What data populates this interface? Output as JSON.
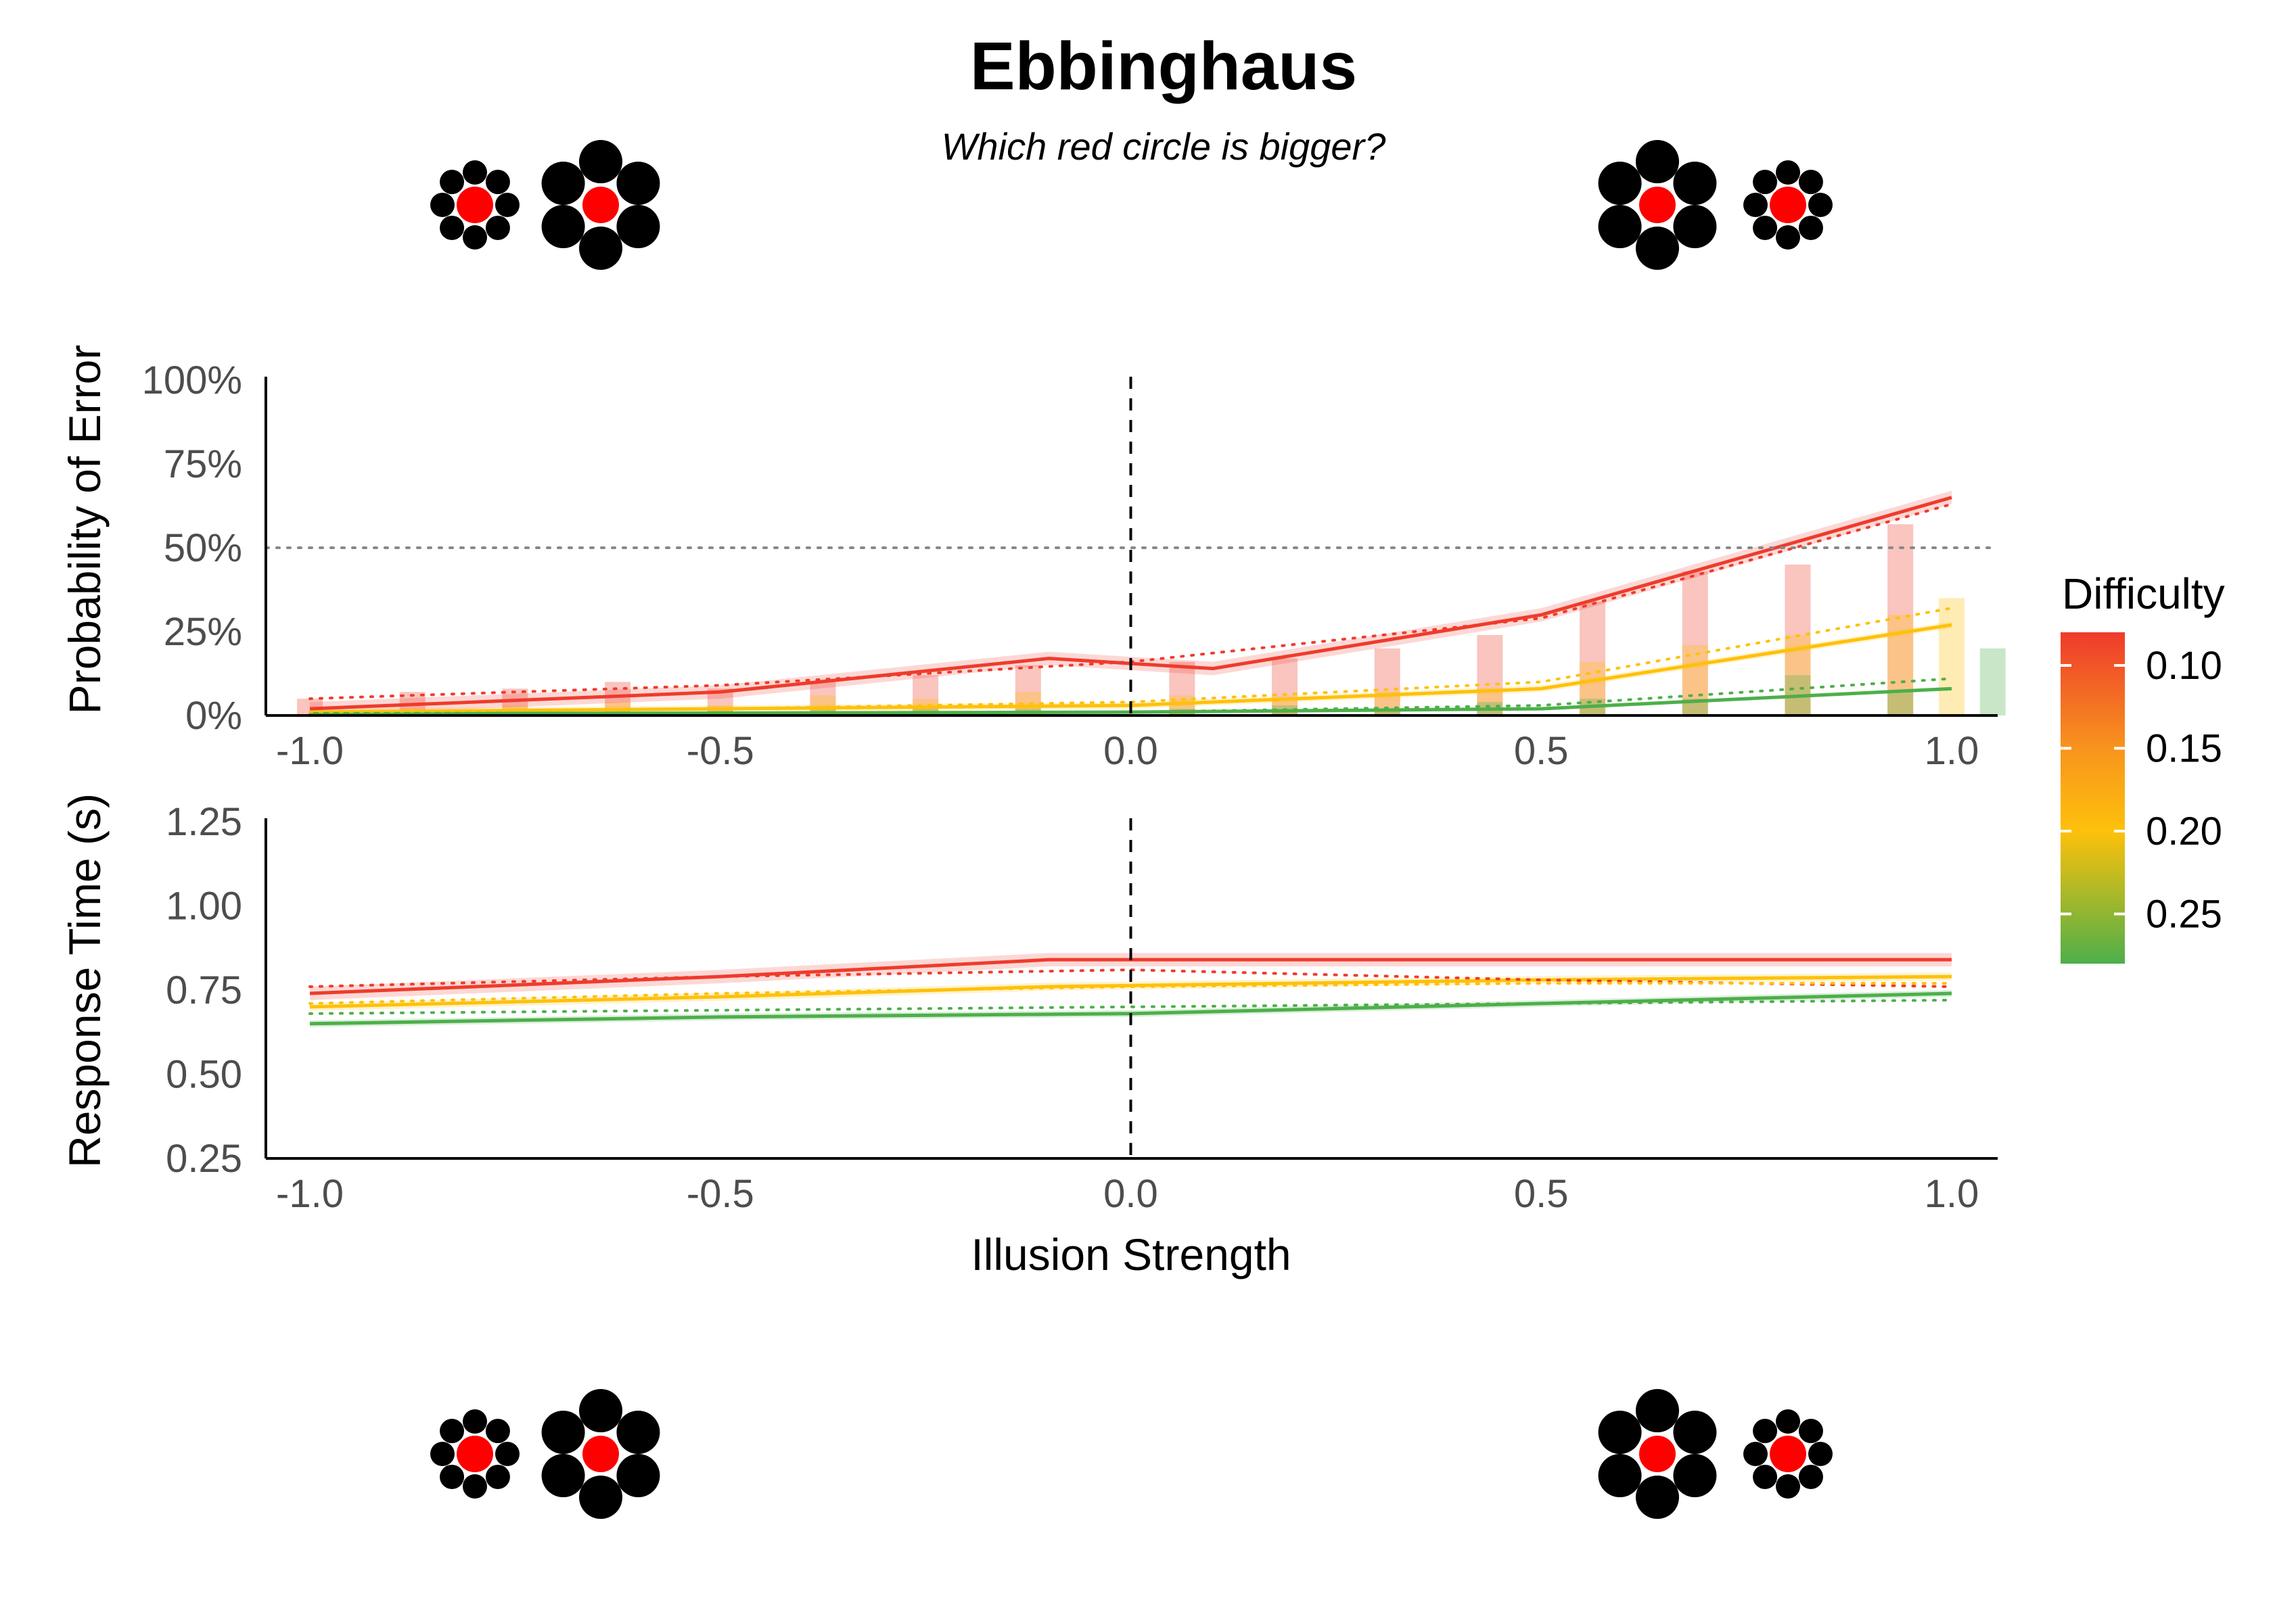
{
  "chart_data": [
    {
      "type": "bar",
      "title": "Ebbinghaus",
      "subtitle": "Which red circle is bigger?",
      "ylabel": "Probability of Error",
      "xlim": [
        -1.05,
        1.05
      ],
      "ylim": [
        0,
        1
      ],
      "x_ticks": [
        "-1.0",
        "-0.5",
        "0.0",
        "0.5",
        "1.0"
      ],
      "x_tick_values": [
        -1.0,
        -0.5,
        0.0,
        0.5,
        1.0
      ],
      "y_ticks": [
        "0%",
        "25%",
        "50%",
        "75%",
        "100%"
      ],
      "y_tick_values": [
        0,
        0.25,
        0.5,
        0.75,
        1.0
      ],
      "reference_lines": {
        "vertical_dashed_x": 0.0,
        "horizontal_dotted_y": 0.5
      },
      "bars": [
        {
          "difficulty": 0.1,
          "x": [
            -1.0,
            -0.875,
            -0.75,
            -0.625,
            -0.5,
            -0.375,
            -0.25,
            -0.125,
            0.0625,
            0.1875,
            0.3125,
            0.4375,
            0.5625,
            0.6875,
            0.8125,
            0.9375
          ],
          "values": [
            0.05,
            0.07,
            0.08,
            0.1,
            0.08,
            0.1,
            0.12,
            0.15,
            0.16,
            0.17,
            0.2,
            0.24,
            0.34,
            0.43,
            0.45,
            0.57
          ]
        },
        {
          "difficulty": 0.2,
          "x": [
            -0.875,
            -0.75,
            -0.625,
            -0.5,
            -0.375,
            -0.25,
            -0.125,
            0.0625,
            0.1875,
            0.3125,
            0.4375,
            0.5625,
            0.6875,
            0.8125,
            0.9375,
            1.0
          ],
          "values": [
            0.02,
            0.03,
            0.04,
            0.03,
            0.06,
            0.05,
            0.07,
            0.06,
            0.05,
            0.07,
            0.08,
            0.16,
            0.21,
            0.24,
            0.3,
            0.35
          ]
        },
        {
          "difficulty": 0.28,
          "x": [
            -0.5,
            -0.375,
            -0.25,
            -0.125,
            0.0625,
            0.1875,
            0.3125,
            0.4375,
            0.5625,
            0.6875,
            0.8125,
            0.9375,
            1.05
          ],
          "values": [
            0.02,
            0.02,
            0.02,
            0.02,
            0.02,
            0.03,
            0.02,
            0.04,
            0.05,
            0.05,
            0.12,
            0.07,
            0.2
          ]
        }
      ],
      "series": [
        {
          "difficulty": 0.1,
          "x": [
            -1.0,
            -0.5,
            -0.1,
            0.1,
            0.5,
            1.0
          ],
          "values": [
            0.02,
            0.07,
            0.17,
            0.14,
            0.3,
            0.65
          ],
          "ribbon": 0.02
        },
        {
          "difficulty": 0.2,
          "x": [
            -1.0,
            -0.5,
            0.0,
            0.5,
            1.0
          ],
          "values": [
            0.01,
            0.02,
            0.03,
            0.08,
            0.27
          ],
          "ribbon": 0.01
        },
        {
          "difficulty": 0.28,
          "x": [
            -1.0,
            -0.5,
            0.0,
            0.5,
            1.0
          ],
          "values": [
            0.005,
            0.007,
            0.01,
            0.02,
            0.08
          ],
          "ribbon": 0.005
        }
      ],
      "dotted_series": [
        {
          "difficulty": 0.1,
          "x": [
            -1.0,
            -0.5,
            0.0,
            0.5,
            1.0
          ],
          "values": [
            0.05,
            0.09,
            0.16,
            0.29,
            0.63
          ]
        },
        {
          "difficulty": 0.2,
          "x": [
            -1.0,
            -0.5,
            0.0,
            0.5,
            1.0
          ],
          "values": [
            0.01,
            0.02,
            0.04,
            0.1,
            0.32
          ]
        },
        {
          "difficulty": 0.28,
          "x": [
            -1.0,
            -0.5,
            0.0,
            0.5,
            1.0
          ],
          "values": [
            0.003,
            0.005,
            0.01,
            0.03,
            0.11
          ]
        }
      ]
    },
    {
      "type": "line",
      "xlabel": "Illusion Strength",
      "ylabel": "Response Time (s)",
      "xlim": [
        -1.05,
        1.05
      ],
      "ylim": [
        0.25,
        1.25
      ],
      "x_ticks": [
        "-1.0",
        "-0.5",
        "0.0",
        "0.5",
        "1.0"
      ],
      "x_tick_values": [
        -1.0,
        -0.5,
        0.0,
        0.5,
        1.0
      ],
      "y_ticks": [
        "0.25",
        "0.50",
        "0.75",
        "1.00",
        "1.25"
      ],
      "y_tick_values": [
        0.25,
        0.5,
        0.75,
        1.0,
        1.25
      ],
      "reference_lines": {
        "vertical_dashed_x": 0.0
      },
      "series": [
        {
          "difficulty": 0.1,
          "x": [
            -1.0,
            -0.5,
            -0.1,
            0.5,
            1.0
          ],
          "values": [
            0.74,
            0.79,
            0.84,
            0.84,
            0.84
          ],
          "ribbon": 0.02
        },
        {
          "difficulty": 0.2,
          "x": [
            -1.0,
            -0.5,
            -0.1,
            0.5,
            1.0
          ],
          "values": [
            0.7,
            0.73,
            0.76,
            0.78,
            0.79
          ],
          "ribbon": 0.012
        },
        {
          "difficulty": 0.28,
          "x": [
            -1.0,
            -0.5,
            0.0,
            0.5,
            1.0
          ],
          "values": [
            0.65,
            0.67,
            0.68,
            0.71,
            0.74
          ],
          "ribbon": 0.01
        }
      ],
      "dotted_series": [
        {
          "difficulty": 0.1,
          "x": [
            -1.0,
            -0.5,
            0.0,
            0.5,
            1.0
          ],
          "values": [
            0.76,
            0.79,
            0.81,
            0.78,
            0.76
          ]
        },
        {
          "difficulty": 0.2,
          "x": [
            -1.0,
            -0.5,
            0.0,
            0.5,
            1.0
          ],
          "values": [
            0.71,
            0.74,
            0.76,
            0.77,
            0.77
          ]
        },
        {
          "difficulty": 0.28,
          "x": [
            -1.0,
            -0.5,
            0.0,
            0.5,
            1.0
          ],
          "values": [
            0.68,
            0.69,
            0.7,
            0.71,
            0.72
          ]
        }
      ]
    }
  ],
  "legend": {
    "title": "Difficulty",
    "ticks": [
      "0.10",
      "0.15",
      "0.20",
      "0.25"
    ],
    "tick_values": [
      0.1,
      0.15,
      0.2,
      0.25
    ],
    "range": [
      0.08,
      0.28
    ],
    "colors": [
      "#EF3B2C",
      "#F7941D",
      "#FEC10B",
      "#4DAF4A"
    ],
    "placement": "right"
  },
  "colors": {
    "difficulty_0.10": "#EF3B2C",
    "difficulty_0.20": "#FEC10B",
    "difficulty_0.28": "#4DAF4A",
    "reference": "#000000",
    "chance_line": "#888888"
  },
  "illustrations": {
    "stimulus_colors": {
      "target": "#FF0000",
      "inducers": "#000000"
    }
  }
}
